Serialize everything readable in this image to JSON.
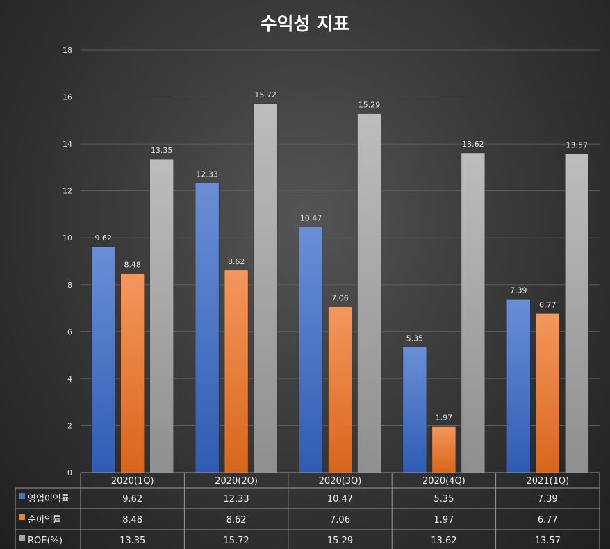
{
  "chart_data": {
    "type": "bar",
    "title": "수익성 지표",
    "categories": [
      "2020(1Q)",
      "2020(2Q)",
      "2020(3Q)",
      "2020(4Q)",
      "2021(1Q)"
    ],
    "series": [
      {
        "name": "영업이익률",
        "values": [
          9.62,
          12.33,
          10.47,
          5.35,
          7.39
        ],
        "color": "#4472C4"
      },
      {
        "name": "순이익률",
        "values": [
          8.48,
          8.62,
          7.06,
          1.97,
          6.77
        ],
        "color": "#ED7D31"
      },
      {
        "name": "ROE(%)",
        "values": [
          13.35,
          15.72,
          15.29,
          13.62,
          13.57
        ],
        "color": "#A5A5A5"
      }
    ],
    "ylim": [
      0,
      18
    ],
    "yticks": [
      0,
      2,
      4,
      6,
      8,
      10,
      12,
      14,
      16,
      18
    ],
    "data_labels": true,
    "data_table": true,
    "grid": true,
    "xlabel": "",
    "ylabel": ""
  }
}
